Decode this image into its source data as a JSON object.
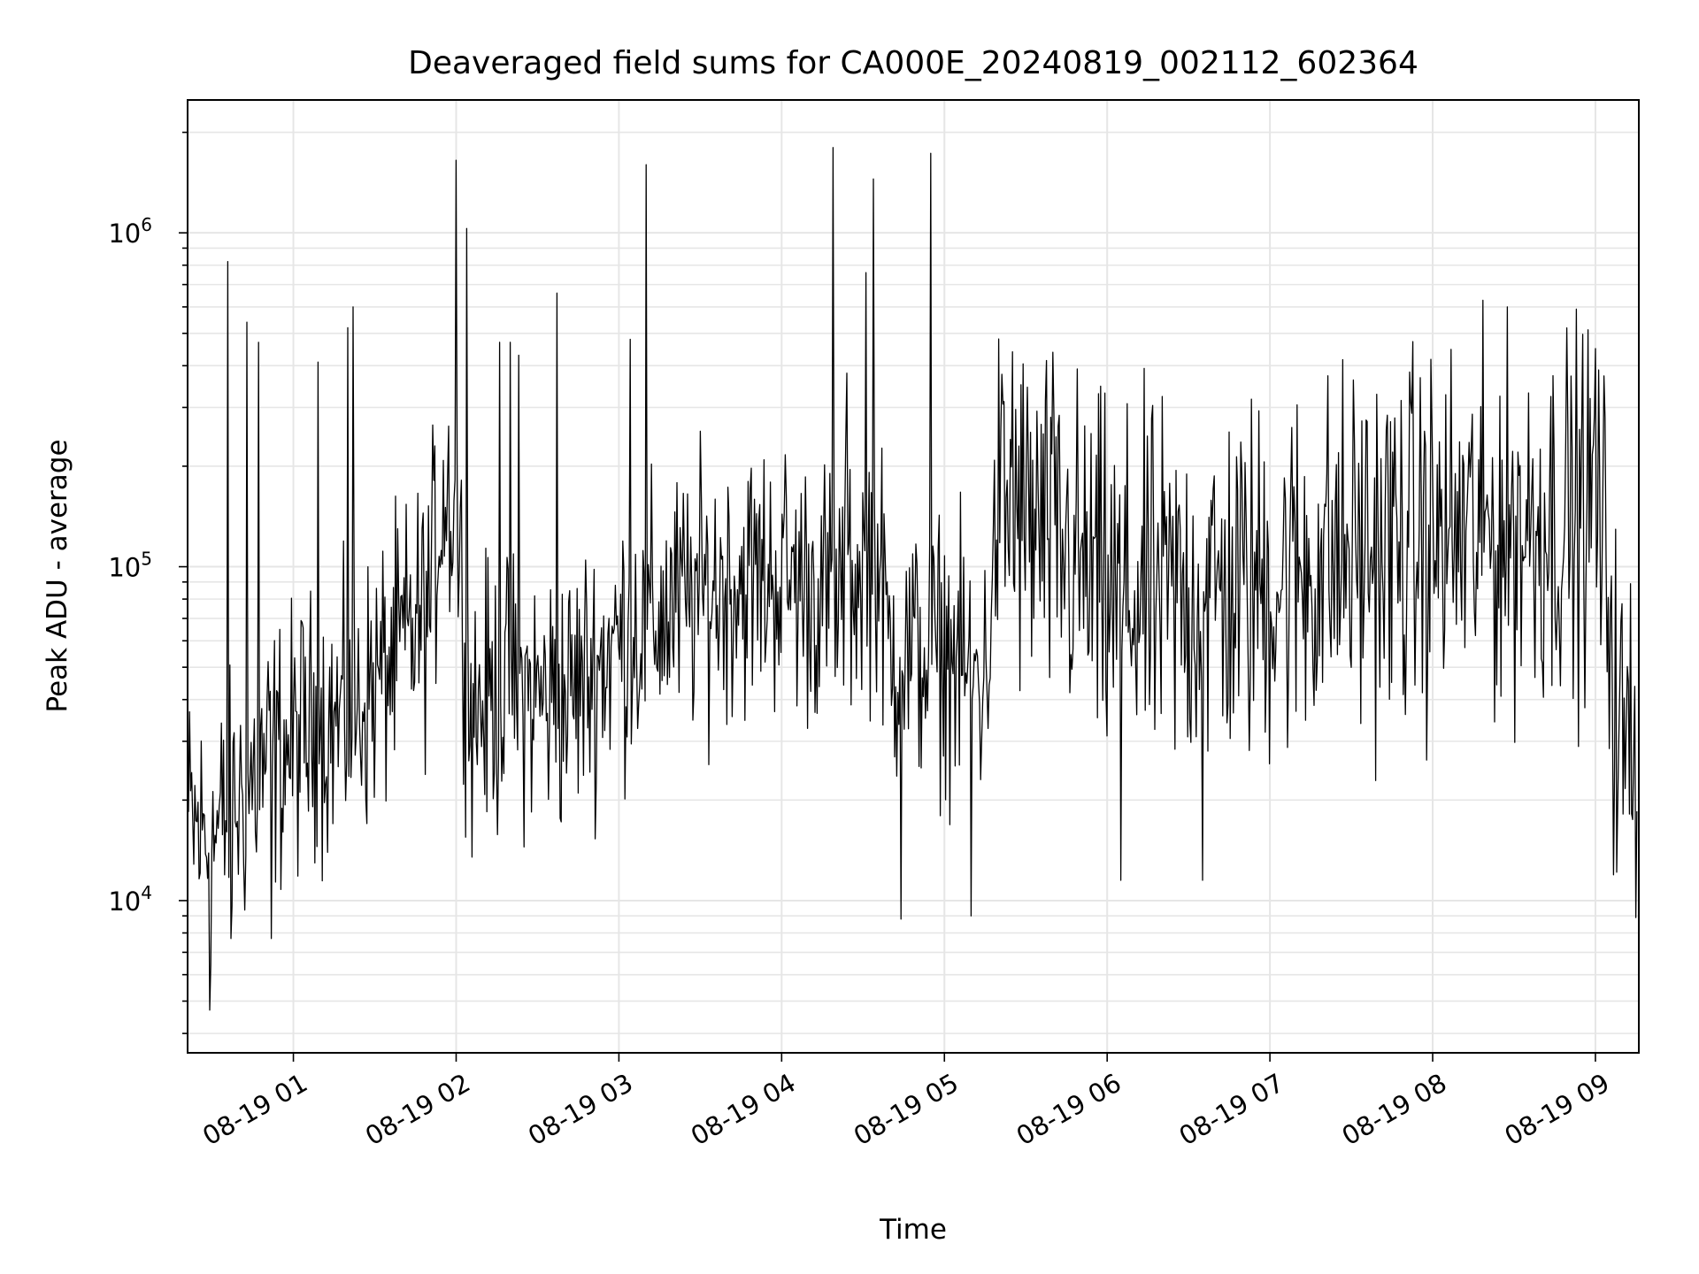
{
  "chart_data": {
    "type": "line",
    "title": "Deaveraged field sums for CA000E_20240819_002112_602364",
    "xlabel": "Time",
    "ylabel": "Peak ADU - average",
    "yscale": "log",
    "grid": true,
    "line_color": "#000000",
    "xlim": [
      "2024-08-19 00:21",
      "2024-08-19 09:16"
    ],
    "ylim": [
      3500,
      2500000
    ],
    "x_ticks": [
      "08-19 01",
      "08-19 02",
      "08-19 03",
      "08-19 04",
      "08-19 05",
      "08-19 06",
      "08-19 07",
      "08-19 08",
      "08-19 09"
    ],
    "y_ticks": [
      {
        "base": "10",
        "exp": "4",
        "value": 10000
      },
      {
        "base": "10",
        "exp": "5",
        "value": 100000
      },
      {
        "base": "10",
        "exp": "6",
        "value": 1000000
      }
    ],
    "series": [
      {
        "name": "",
        "trend": [
          [
            "2024-08-19 00:21",
            17000
          ],
          [
            "2024-08-19 00:30",
            15000
          ],
          [
            "2024-08-19 00:40",
            20000
          ],
          [
            "2024-08-19 00:50",
            26000
          ],
          [
            "2024-08-19 01:05",
            32000
          ],
          [
            "2024-08-19 01:20",
            35000
          ],
          [
            "2024-08-19 01:35",
            50000
          ],
          [
            "2024-08-19 01:50",
            75000
          ],
          [
            "2024-08-19 01:55",
            170000
          ],
          [
            "2024-08-19 02:00",
            150000
          ],
          [
            "2024-08-19 02:05",
            38000
          ],
          [
            "2024-08-19 02:20",
            42000
          ],
          [
            "2024-08-19 02:40",
            40000
          ],
          [
            "2024-08-19 03:00",
            60000
          ],
          [
            "2024-08-19 03:20",
            75000
          ],
          [
            "2024-08-19 03:40",
            90000
          ],
          [
            "2024-08-19 04:00",
            95000
          ],
          [
            "2024-08-19 04:20",
            80000
          ],
          [
            "2024-08-19 04:35",
            110000
          ],
          [
            "2024-08-19 04:40",
            55000
          ],
          [
            "2024-08-19 05:00",
            55000
          ],
          [
            "2024-08-19 05:15",
            45000
          ],
          [
            "2024-08-19 05:20",
            150000
          ],
          [
            "2024-08-19 05:40",
            120000
          ],
          [
            "2024-08-19 06:00",
            80000
          ],
          [
            "2024-08-19 06:30",
            80000
          ],
          [
            "2024-08-19 07:00",
            90000
          ],
          [
            "2024-08-19 07:30",
            110000
          ],
          [
            "2024-08-19 08:00",
            120000
          ],
          [
            "2024-08-19 08:30",
            130000
          ],
          [
            "2024-08-19 09:00",
            150000
          ],
          [
            "2024-08-19 09:05",
            90000
          ],
          [
            "2024-08-19 09:08",
            30000
          ],
          [
            "2024-08-19 09:16",
            28000
          ]
        ],
        "spikes": [
          [
            "2024-08-19 00:36",
            820000
          ],
          [
            "2024-08-19 00:43",
            540000
          ],
          [
            "2024-08-19 00:47",
            470000
          ],
          [
            "2024-08-19 01:09",
            410000
          ],
          [
            "2024-08-19 01:20",
            520000
          ],
          [
            "2024-08-19 01:22",
            600000
          ],
          [
            "2024-08-19 02:00",
            1650000
          ],
          [
            "2024-08-19 02:04",
            1030000
          ],
          [
            "2024-08-19 02:16",
            470000
          ],
          [
            "2024-08-19 02:20",
            470000
          ],
          [
            "2024-08-19 02:23",
            430000
          ],
          [
            "2024-08-19 02:37",
            660000
          ],
          [
            "2024-08-19 03:04",
            480000
          ],
          [
            "2024-08-19 03:10",
            1600000
          ],
          [
            "2024-08-19 04:19",
            1800000
          ],
          [
            "2024-08-19 04:24",
            380000
          ],
          [
            "2024-08-19 04:31",
            760000
          ],
          [
            "2024-08-19 04:34",
            1450000
          ],
          [
            "2024-08-19 04:55",
            1730000
          ],
          [
            "2024-08-19 05:25",
            440000
          ],
          [
            "2024-08-19 09:00",
            450000
          ]
        ],
        "dips": [
          [
            "2024-08-19 00:29",
            4700
          ],
          [
            "2024-08-19 00:37",
            7700
          ],
          [
            "2024-08-19 00:52",
            7700
          ],
          [
            "2024-08-19 04:44",
            8800
          ],
          [
            "2024-08-19 05:10",
            9000
          ],
          [
            "2024-08-19 06:05",
            11500
          ],
          [
            "2024-08-19 06:35",
            11500
          ]
        ]
      }
    ]
  }
}
